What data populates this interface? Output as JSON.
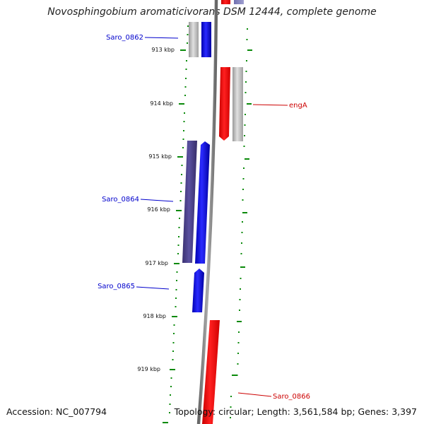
{
  "title": "Novosphingobium aromaticivorans DSM 12444, complete genome",
  "accession": "Accession: NC_007794",
  "summary": "Topology: circular; Length: 3,561,584 bp; Genes: 3,397",
  "colors": {
    "forward": "#1010e6",
    "reverse": "#ff0000",
    "gray": "#b0b0b0",
    "purple": "#4a3f8f",
    "tick": "#0a8a0a",
    "backbone": "#777777",
    "forward_label": "#0000cc",
    "reverse_label": "#cc0000"
  },
  "ticks": [
    {
      "label": "913 kbp"
    },
    {
      "label": "914 kbp"
    },
    {
      "label": "915 kbp"
    },
    {
      "label": "916 kbp"
    },
    {
      "label": "917 kbp"
    },
    {
      "label": "918 kbp"
    },
    {
      "label": "919 kbp"
    }
  ],
  "genes": [
    {
      "name": "Saro_0862",
      "strand": "forward"
    },
    {
      "name": "engA",
      "strand": "reverse"
    },
    {
      "name": "Saro_0864",
      "strand": "forward"
    },
    {
      "name": "Saro_0865",
      "strand": "forward"
    },
    {
      "name": "Saro_0866",
      "strand": "reverse"
    }
  ]
}
